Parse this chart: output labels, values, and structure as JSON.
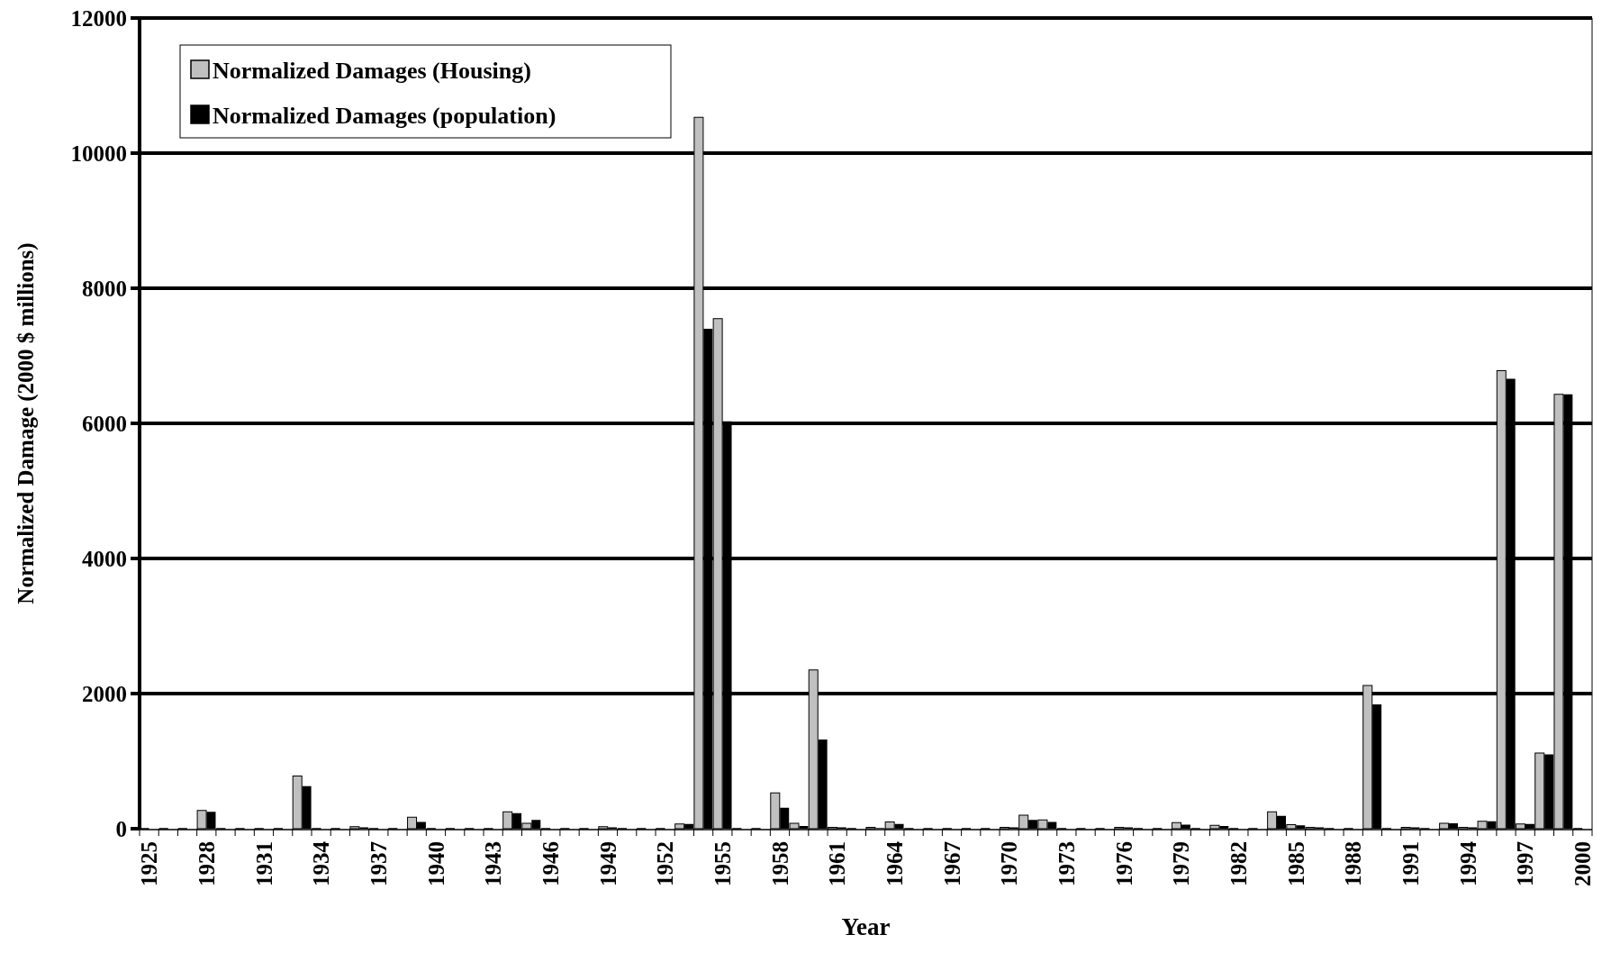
{
  "chart_data": {
    "type": "bar",
    "xlabel": "Year",
    "ylabel": "Normalized Damage (2000 $ millions)",
    "categories": [
      "1925",
      null,
      null,
      "1928",
      null,
      null,
      "1931",
      null,
      null,
      "1934",
      null,
      null,
      "1937",
      null,
      null,
      "1940",
      null,
      null,
      "1943",
      null,
      null,
      "1946",
      null,
      null,
      "1949",
      null,
      null,
      "1952",
      null,
      null,
      "1955",
      null,
      null,
      "1958",
      null,
      null,
      "1961",
      null,
      null,
      "1964",
      null,
      null,
      "1967",
      null,
      null,
      "1970",
      null,
      null,
      "1973",
      null,
      null,
      "1976",
      null,
      null,
      "1979",
      null,
      null,
      "1982",
      null,
      null,
      "1985",
      null,
      null,
      "1988",
      null,
      null,
      "1991",
      null,
      null,
      "1994",
      null,
      null,
      "1997",
      null,
      null,
      "2000"
    ],
    "series": [
      {
        "name": "Normalized Damages (Housing)",
        "color": "#c0c0c0",
        "values": [
          0,
          0,
          0,
          270,
          0,
          0,
          0,
          0,
          780,
          0,
          0,
          30,
          0,
          0,
          170,
          0,
          0,
          0,
          0,
          250,
          80,
          0,
          0,
          0,
          30,
          0,
          0,
          0,
          70,
          10530,
          7550,
          0,
          0,
          530,
          80,
          2350,
          20,
          0,
          20,
          100,
          0,
          0,
          0,
          0,
          0,
          20,
          200,
          130,
          0,
          0,
          0,
          20,
          0,
          0,
          90,
          0,
          50,
          0,
          0,
          250,
          60,
          20,
          0,
          0,
          2120,
          0,
          20,
          0,
          80,
          20,
          110,
          6780,
          70,
          1120,
          6430,
          0
        ]
      },
      {
        "name": "Normalized Damages (population)",
        "color": "#000000",
        "values": [
          0,
          0,
          0,
          250,
          0,
          0,
          0,
          0,
          630,
          0,
          0,
          20,
          0,
          0,
          100,
          0,
          0,
          0,
          0,
          230,
          130,
          0,
          0,
          0,
          20,
          0,
          0,
          0,
          70,
          7400,
          6030,
          0,
          0,
          310,
          40,
          1320,
          20,
          0,
          10,
          70,
          0,
          0,
          0,
          0,
          0,
          20,
          130,
          100,
          0,
          0,
          0,
          20,
          0,
          0,
          60,
          0,
          40,
          0,
          0,
          190,
          50,
          20,
          0,
          0,
          1840,
          0,
          20,
          0,
          80,
          20,
          110,
          6660,
          70,
          1100,
          6430,
          0
        ]
      }
    ],
    "ylim": [
      0,
      12000
    ],
    "yticks": [
      0,
      2000,
      4000,
      6000,
      8000,
      10000,
      12000
    ],
    "grid": "y",
    "legend": "top left"
  }
}
